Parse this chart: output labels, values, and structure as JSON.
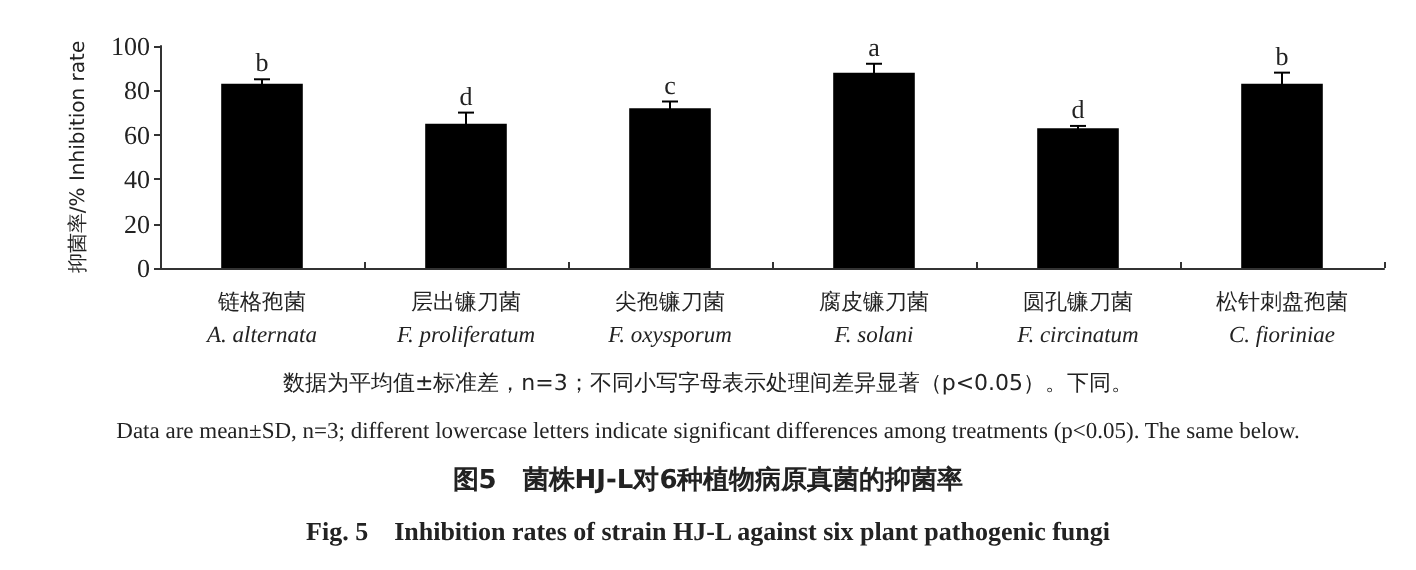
{
  "chart_data": {
    "type": "bar",
    "title": "图5　菌株HJ-L对6种植物病原真菌的抑菌率",
    "subtitle": "Fig. 5　Inhibition rates of strain HJ-L against six plant pathogenic fungi",
    "ylabel": "抑菌率/% Inhibition rate",
    "categories": [
      "链格孢菌\nA. alternata",
      "层出镰刀菌\nF. proliferatum",
      "尖孢镰刀菌\nF. oxysporum",
      "腐皮镰刀菌\nF. solani",
      "圆孔镰刀菌\nF. circinatum",
      "松针刺盘孢菌\nC. fioriniae"
    ],
    "values": [
      83,
      65,
      72,
      88,
      63,
      83
    ],
    "errors": [
      2,
      5,
      3,
      4,
      1,
      5
    ],
    "color": "#000000",
    "ylim": [
      0,
      100
    ],
    "yticks": [
      0,
      20,
      40,
      60,
      80,
      100
    ],
    "grid": false,
    "annotations": [
      {
        "text": "b",
        "x": "链格孢菌\nA. alternata",
        "y": 85
      },
      {
        "text": "d",
        "x": "层出镰刀菌\nF. proliferatum",
        "y": 70
      },
      {
        "text": "c",
        "x": "尖孢镰刀菌\nF. oxysporum",
        "y": 75
      },
      {
        "text": "a",
        "x": "腐皮镰刀菌\nF. solani",
        "y": 92
      },
      {
        "text": "d",
        "x": "圆孔镰刀菌\nF. circinatum",
        "y": 64
      },
      {
        "text": "b",
        "x": "松针刺盘孢菌\nC. fioriniae",
        "y": 88
      },
      "数据为平均值±标准差，n=3；不同小写字母表示处理间差异显著（p<0.05）。下同。",
      "Data are mean±SD, n=3; different lowercase letters indicate significant differences among treatments (p<0.05). The same below."
    ]
  }
}
